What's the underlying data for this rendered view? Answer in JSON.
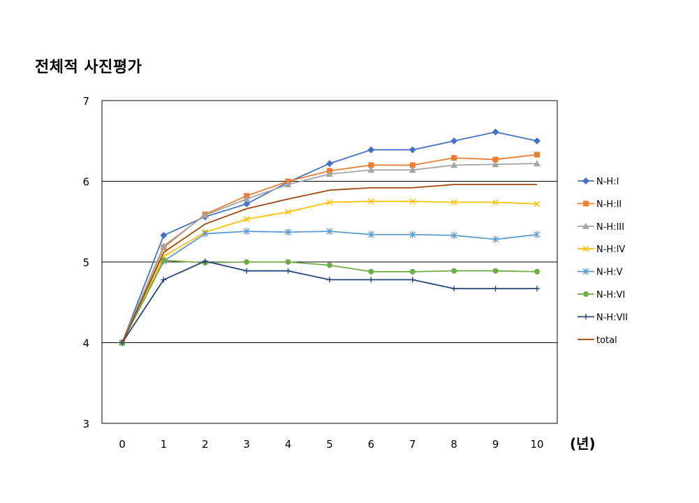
{
  "title": "전체적 사진평가",
  "chart_data": {
    "type": "line",
    "title": "전체적 사진평가",
    "x": [
      0,
      1,
      2,
      3,
      4,
      5,
      6,
      7,
      8,
      9,
      10
    ],
    "xunit_label": "(년)",
    "ylim": [
      3,
      7
    ],
    "yticks": [
      3,
      4,
      5,
      6,
      7
    ],
    "grid_y": [
      4,
      5,
      6
    ],
    "legend_position": "right",
    "series": [
      {
        "name": "N-H:I",
        "color": "#4472C4",
        "marker": "diamond",
        "values": [
          4.0,
          5.33,
          5.56,
          5.72,
          5.99,
          6.22,
          6.39,
          6.39,
          6.5,
          6.61,
          6.5
        ]
      },
      {
        "name": "N-H:II",
        "color": "#ED7D31",
        "marker": "square",
        "values": [
          4.0,
          5.18,
          5.59,
          5.82,
          6.0,
          6.13,
          6.2,
          6.2,
          6.29,
          6.27,
          6.33
        ]
      },
      {
        "name": "N-H:III",
        "color": "#A5A5A5",
        "marker": "triangle",
        "values": [
          4.0,
          5.2,
          5.58,
          5.78,
          5.96,
          6.09,
          6.14,
          6.14,
          6.2,
          6.21,
          6.22
        ]
      },
      {
        "name": "N-H:IV",
        "color": "#FFC000",
        "marker": "x",
        "values": [
          4.0,
          5.07,
          5.37,
          5.53,
          5.62,
          5.74,
          5.75,
          5.75,
          5.74,
          5.74,
          5.72
        ]
      },
      {
        "name": "N-H:V",
        "color": "#5B9BD5",
        "marker": "star",
        "values": [
          4.0,
          5.01,
          5.35,
          5.38,
          5.37,
          5.38,
          5.34,
          5.34,
          5.33,
          5.28,
          5.34
        ]
      },
      {
        "name": "N-H:VI",
        "color": "#70AD47",
        "marker": "circle",
        "values": [
          4.0,
          5.02,
          4.99,
          5.0,
          5.0,
          4.96,
          4.88,
          4.88,
          4.89,
          4.89,
          4.88
        ]
      },
      {
        "name": "N-H:VII",
        "color": "#264478",
        "marker": "plus",
        "values": [
          4.0,
          4.78,
          5.01,
          4.89,
          4.89,
          4.78,
          4.78,
          4.78,
          4.67,
          4.67,
          4.67
        ]
      },
      {
        "name": "total",
        "color": "#9E480E",
        "marker": "none",
        "values": [
          4.0,
          5.12,
          5.47,
          5.66,
          5.78,
          5.89,
          5.92,
          5.92,
          5.96,
          5.96,
          5.96
        ]
      }
    ]
  }
}
